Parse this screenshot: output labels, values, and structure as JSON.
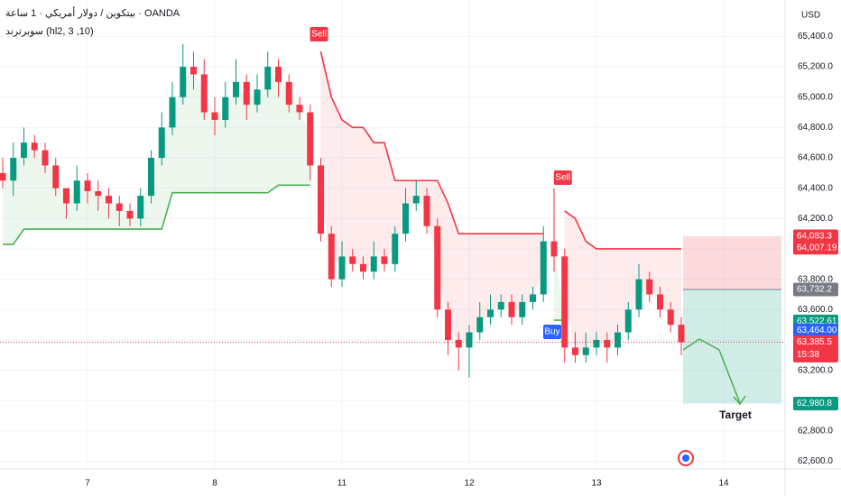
{
  "chart_data": {
    "type": "candlestick",
    "title": "بيتكوين / دولار أمريكي · 1 ساعة · OANDA",
    "subtitle": "سوبرترند (hl2, 3 ,10)",
    "currency": "USD",
    "categories": [
      null,
      null,
      null,
      null,
      null,
      null,
      null,
      null,
      "7",
      null,
      null,
      null,
      null,
      null,
      null,
      null,
      null,
      null,
      null,
      null,
      "8",
      null,
      null,
      null,
      null,
      null,
      null,
      null,
      null,
      null,
      null,
      null,
      "11",
      null,
      null,
      null,
      null,
      null,
      null,
      null,
      null,
      null,
      null,
      null,
      "12",
      null,
      null,
      null,
      null,
      null,
      null,
      null,
      null,
      null,
      null,
      null,
      "13",
      null,
      null,
      null,
      null,
      null,
      null,
      null,
      null,
      null,
      null,
      null,
      "14",
      null,
      null,
      null,
      null,
      null
    ],
    "open": [
      64500,
      64450,
      64600,
      64700,
      64650,
      64550,
      64400,
      64300,
      64450,
      64380,
      64350,
      64300,
      64250,
      64200,
      64350,
      64600,
      64800,
      65000,
      65200,
      65150,
      64900,
      64850,
      65000,
      65100,
      64950,
      65050,
      65200,
      65100,
      64950,
      64900,
      64550,
      64100,
      63800,
      63950,
      63900,
      63850,
      63950,
      63900,
      64100,
      64300,
      64350,
      64150,
      63600,
      63400,
      63350,
      63450,
      63550,
      63600,
      63650,
      63550,
      63650,
      63700,
      64050,
      63950,
      63350,
      63300,
      63350,
      63400,
      63350,
      63450,
      63600,
      63800,
      63700,
      63600,
      63500,
      null,
      null,
      null,
      null,
      null,
      null,
      null,
      null,
      null
    ],
    "high": [
      64600,
      64700,
      64800,
      64750,
      64700,
      64600,
      64400,
      64550,
      64500,
      64450,
      64400,
      64350,
      64300,
      64400,
      64650,
      64900,
      65100,
      65350,
      65300,
      65250,
      65000,
      65100,
      65250,
      65150,
      65150,
      65300,
      65250,
      65150,
      65000,
      64950,
      64600,
      64150,
      64050,
      64000,
      63950,
      64050,
      64000,
      64150,
      64400,
      64450,
      64400,
      64200,
      63650,
      63450,
      63500,
      63650,
      63700,
      63700,
      63700,
      63700,
      63750,
      64150,
      64400,
      64000,
      63450,
      63450,
      63450,
      63450,
      63500,
      63650,
      63900,
      63850,
      63750,
      63650,
      63550,
      null,
      null,
      null,
      null,
      null,
      null,
      null,
      null,
      null
    ],
    "low": [
      64400,
      64350,
      64550,
      64600,
      64500,
      64350,
      64200,
      64250,
      64300,
      64250,
      64200,
      64150,
      64150,
      64150,
      64300,
      64550,
      64750,
      64950,
      65050,
      64850,
      64750,
      64800,
      64950,
      64850,
      64900,
      65000,
      65000,
      64900,
      64850,
      64450,
      64050,
      63750,
      63750,
      63850,
      63800,
      63800,
      63850,
      63850,
      64050,
      64250,
      64100,
      63550,
      63300,
      63200,
      63150,
      63400,
      63500,
      63550,
      63500,
      63500,
      63600,
      63650,
      63850,
      63250,
      63250,
      63250,
      63300,
      63250,
      63300,
      63400,
      63550,
      63650,
      63550,
      63450,
      63300,
      null,
      null,
      null,
      null,
      null,
      null,
      null,
      null,
      null
    ],
    "close": [
      64450,
      64600,
      64700,
      64650,
      64550,
      64400,
      64300,
      64450,
      64380,
      64350,
      64300,
      64250,
      64200,
      64350,
      64600,
      64800,
      65000,
      65200,
      65150,
      64900,
      64850,
      65000,
      65100,
      64950,
      65050,
      65200,
      65100,
      64950,
      64900,
      64550,
      64100,
      63800,
      63950,
      63900,
      63850,
      63950,
      63900,
      64100,
      64300,
      64350,
      64150,
      63600,
      63400,
      63350,
      63450,
      63550,
      63600,
      63650,
      63550,
      63650,
      63700,
      64050,
      63950,
      63350,
      63300,
      63350,
      63400,
      63350,
      63450,
      63600,
      63800,
      63700,
      63600,
      63500,
      63385,
      null,
      null,
      null,
      null,
      null,
      null,
      null,
      null,
      null
    ],
    "up_color": "#089981",
    "down_color": "#f23645",
    "series": [
      {
        "name": "up-trend",
        "color": "#4caf50",
        "values": [
          64030,
          64030,
          64130,
          64130,
          64130,
          64130,
          64130,
          64130,
          64130,
          64130,
          64130,
          64130,
          64130,
          64130,
          64130,
          64130,
          64370,
          64370,
          64370,
          64370,
          64370,
          64370,
          64370,
          64370,
          64370,
          64370,
          64420,
          64420,
          64420,
          64420,
          null,
          null,
          null,
          null,
          null,
          null,
          null,
          null,
          null,
          null,
          null,
          null,
          null,
          null,
          null,
          null,
          null,
          null,
          null,
          null,
          null,
          null,
          63530,
          null,
          null,
          null,
          null,
          null,
          null,
          null,
          null,
          null,
          null,
          null,
          null,
          null,
          null,
          null,
          null,
          null,
          null,
          null,
          null,
          null
        ]
      },
      {
        "name": "down-trend",
        "color": "#f23645",
        "values": [
          null,
          null,
          null,
          null,
          null,
          null,
          null,
          null,
          null,
          null,
          null,
          null,
          null,
          null,
          null,
          null,
          null,
          null,
          null,
          null,
          null,
          null,
          null,
          null,
          null,
          null,
          null,
          null,
          null,
          null,
          65300,
          65000,
          64850,
          64800,
          64800,
          64700,
          64700,
          64450,
          64450,
          64450,
          64450,
          64450,
          64300,
          64100,
          64100,
          64100,
          64100,
          64100,
          64100,
          64100,
          64100,
          64100,
          null,
          64250,
          64200,
          64050,
          64000,
          64000,
          64000,
          64000,
          64000,
          64000,
          64000,
          64000,
          64000,
          null,
          null,
          null,
          null,
          null,
          null,
          null,
          null,
          null
        ]
      }
    ],
    "signals": [
      {
        "label": "Sell"
      },
      {
        "label": "Buy"
      },
      {
        "label": "Sell"
      }
    ],
    "position": {
      "stop": 64083.3,
      "entry": 63732.2,
      "target": 62980.8,
      "target_label": "Target"
    },
    "ylim": [
      62550,
      65640
    ],
    "yticks": [
      {
        "value": 62600,
        "label": "62,600.0"
      },
      {
        "value": 62800,
        "label": "62,800.0"
      },
      {
        "value": 63000,
        "label": "63,000.0"
      },
      {
        "value": 63200,
        "label": "63,200.0"
      },
      {
        "value": 63400,
        "label": "63,400.0"
      },
      {
        "value": 63600,
        "label": "63,600.0"
      },
      {
        "value": 63800,
        "label": "63,800.0"
      },
      {
        "value": 64000,
        "label": "64,000.0"
      },
      {
        "value": 64200,
        "label": "64,200.0"
      },
      {
        "value": 64400,
        "label": "64,400.0"
      },
      {
        "value": 64600,
        "label": "64,600.0"
      },
      {
        "value": 64800,
        "label": "64,800.0"
      },
      {
        "value": 65000,
        "label": "65,000.0"
      },
      {
        "value": 65200,
        "label": "65,200.0"
      },
      {
        "value": 65400,
        "label": "65,400.0"
      }
    ],
    "price_tags": [
      {
        "value": 64083.3,
        "label": "64,083.3",
        "color": "#f23645"
      },
      {
        "value": 64007.19,
        "label": "64,007.19",
        "color": "#f23645"
      },
      {
        "value": 63732.2,
        "label": "63,732.2",
        "color": "#787b86"
      },
      {
        "value": 63522.61,
        "label": "63,522.61",
        "color": "#089981"
      },
      {
        "value": 63464.0,
        "label": "63,464.00",
        "color": "#2962ff"
      },
      {
        "value": 63385.5,
        "label": "63,385.5",
        "color": "#f23645",
        "countdown": "15:38"
      },
      {
        "value": 62980.8,
        "label": "62,980.8",
        "color": "#089981"
      }
    ],
    "grid": true
  }
}
